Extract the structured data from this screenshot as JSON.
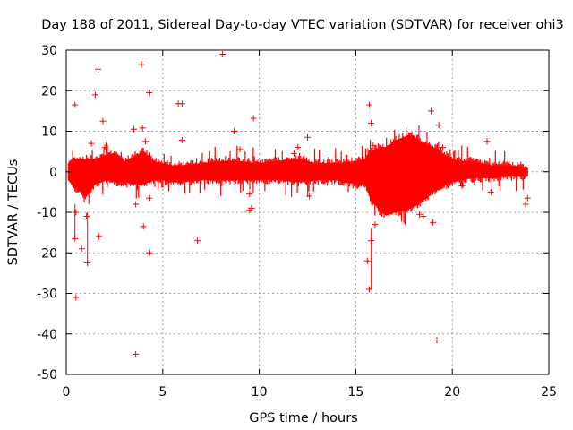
{
  "chart_data": {
    "type": "scatter",
    "title": "Day 188 of 2011, Sidereal Day-to-day VTEC variation (SDTVAR) for receiver ohi3",
    "xlabel": "GPS time / hours",
    "ylabel": "SDTVAR / TECUs",
    "xlim": [
      0,
      25
    ],
    "ylim": [
      -50,
      30
    ],
    "xticks": [
      0,
      5,
      10,
      15,
      20,
      25
    ],
    "yticks": [
      -50,
      -40,
      -30,
      -20,
      -10,
      0,
      10,
      20,
      30
    ],
    "grid": true,
    "color": "#ff0000",
    "marker": "plus",
    "series": [
      {
        "name": "SDTVAR",
        "band": {
          "x": [
            0.1,
            0.5,
            1.0,
            1.5,
            2.0,
            2.5,
            3.0,
            3.5,
            4.0,
            4.5,
            5.0,
            5.5,
            6.0,
            7.0,
            8.0,
            9.0,
            10.0,
            11.0,
            12.0,
            13.0,
            14.0,
            15.0,
            15.5,
            15.8,
            16.0,
            16.3,
            16.6,
            17.0,
            17.5,
            17.8,
            18.0,
            18.5,
            19.0,
            19.5,
            20.0,
            20.5,
            21.0,
            22.0,
            23.0,
            23.9
          ],
          "upper": [
            2.0,
            3.0,
            3.0,
            3.0,
            4.0,
            4.5,
            2.5,
            3.5,
            5.0,
            2.5,
            2.0,
            1.5,
            1.5,
            2.0,
            2.5,
            2.5,
            2.0,
            2.5,
            3.0,
            2.0,
            2.0,
            2.5,
            3.0,
            5.0,
            5.5,
            6.0,
            6.0,
            7.5,
            8.5,
            9.0,
            8.5,
            7.0,
            6.0,
            4.5,
            3.0,
            2.5,
            2.5,
            1.5,
            1.5,
            1.0
          ],
          "lower": [
            -2.0,
            -4.0,
            -6.0,
            -3.0,
            -2.0,
            -2.5,
            -2.5,
            -3.0,
            -3.0,
            -2.0,
            -2.0,
            -2.5,
            -2.5,
            -2.0,
            -2.0,
            -2.0,
            -2.0,
            -2.0,
            -2.5,
            -2.0,
            -2.0,
            -3.0,
            -3.0,
            -7.0,
            -8.0,
            -10.0,
            -10.5,
            -10.0,
            -9.5,
            -9.0,
            -8.5,
            -7.0,
            -5.0,
            -3.5,
            -2.5,
            -2.0,
            -1.5,
            -1.5,
            -1.0,
            -1.0
          ]
        },
        "outliers": [
          [
            0.45,
            16.5
          ],
          [
            0.5,
            -31
          ],
          [
            0.45,
            -16.5
          ],
          [
            0.5,
            -10
          ],
          [
            0.8,
            -19
          ],
          [
            1.1,
            -22.5
          ],
          [
            1.05,
            -11
          ],
          [
            1.3,
            7
          ],
          [
            1.5,
            19
          ],
          [
            1.65,
            25.3
          ],
          [
            1.7,
            -16
          ],
          [
            1.9,
            12.5
          ],
          [
            2.0,
            6
          ],
          [
            3.5,
            10.5
          ],
          [
            3.6,
            -8
          ],
          [
            3.6,
            -45
          ],
          [
            3.9,
            26.5
          ],
          [
            3.95,
            10.8
          ],
          [
            4.0,
            -13.5
          ],
          [
            4.3,
            19.5
          ],
          [
            4.3,
            -20
          ],
          [
            4.1,
            7.5
          ],
          [
            4.3,
            -6.5
          ],
          [
            5.8,
            16.8
          ],
          [
            6.0,
            16.8
          ],
          [
            6.0,
            7.8
          ],
          [
            6.8,
            -17
          ],
          [
            8.1,
            29
          ],
          [
            8.7,
            10
          ],
          [
            9.0,
            5.5
          ],
          [
            9.5,
            -9.5
          ],
          [
            9.6,
            -9
          ],
          [
            9.7,
            13.2
          ],
          [
            9.5,
            -5.5
          ],
          [
            12.0,
            6
          ],
          [
            12.5,
            8.5
          ],
          [
            12.6,
            -6
          ],
          [
            11.8,
            4.5
          ],
          [
            15.7,
            16.5
          ],
          [
            15.8,
            12
          ],
          [
            15.9,
            6.5
          ],
          [
            15.6,
            -22
          ],
          [
            15.7,
            -29
          ],
          [
            15.8,
            -17
          ],
          [
            16.0,
            -13
          ],
          [
            18.3,
            -10.5
          ],
          [
            18.9,
            15
          ],
          [
            19.0,
            -12.5
          ],
          [
            19.2,
            -41.5
          ],
          [
            19.3,
            11.5
          ],
          [
            19.5,
            6
          ],
          [
            21.8,
            7.5
          ],
          [
            23.8,
            -8
          ],
          [
            23.9,
            -6.5
          ],
          [
            20.5,
            -3.5
          ],
          [
            22.0,
            -5
          ],
          [
            19.0,
            2.5
          ],
          [
            18.5,
            -11
          ]
        ]
      }
    ]
  }
}
